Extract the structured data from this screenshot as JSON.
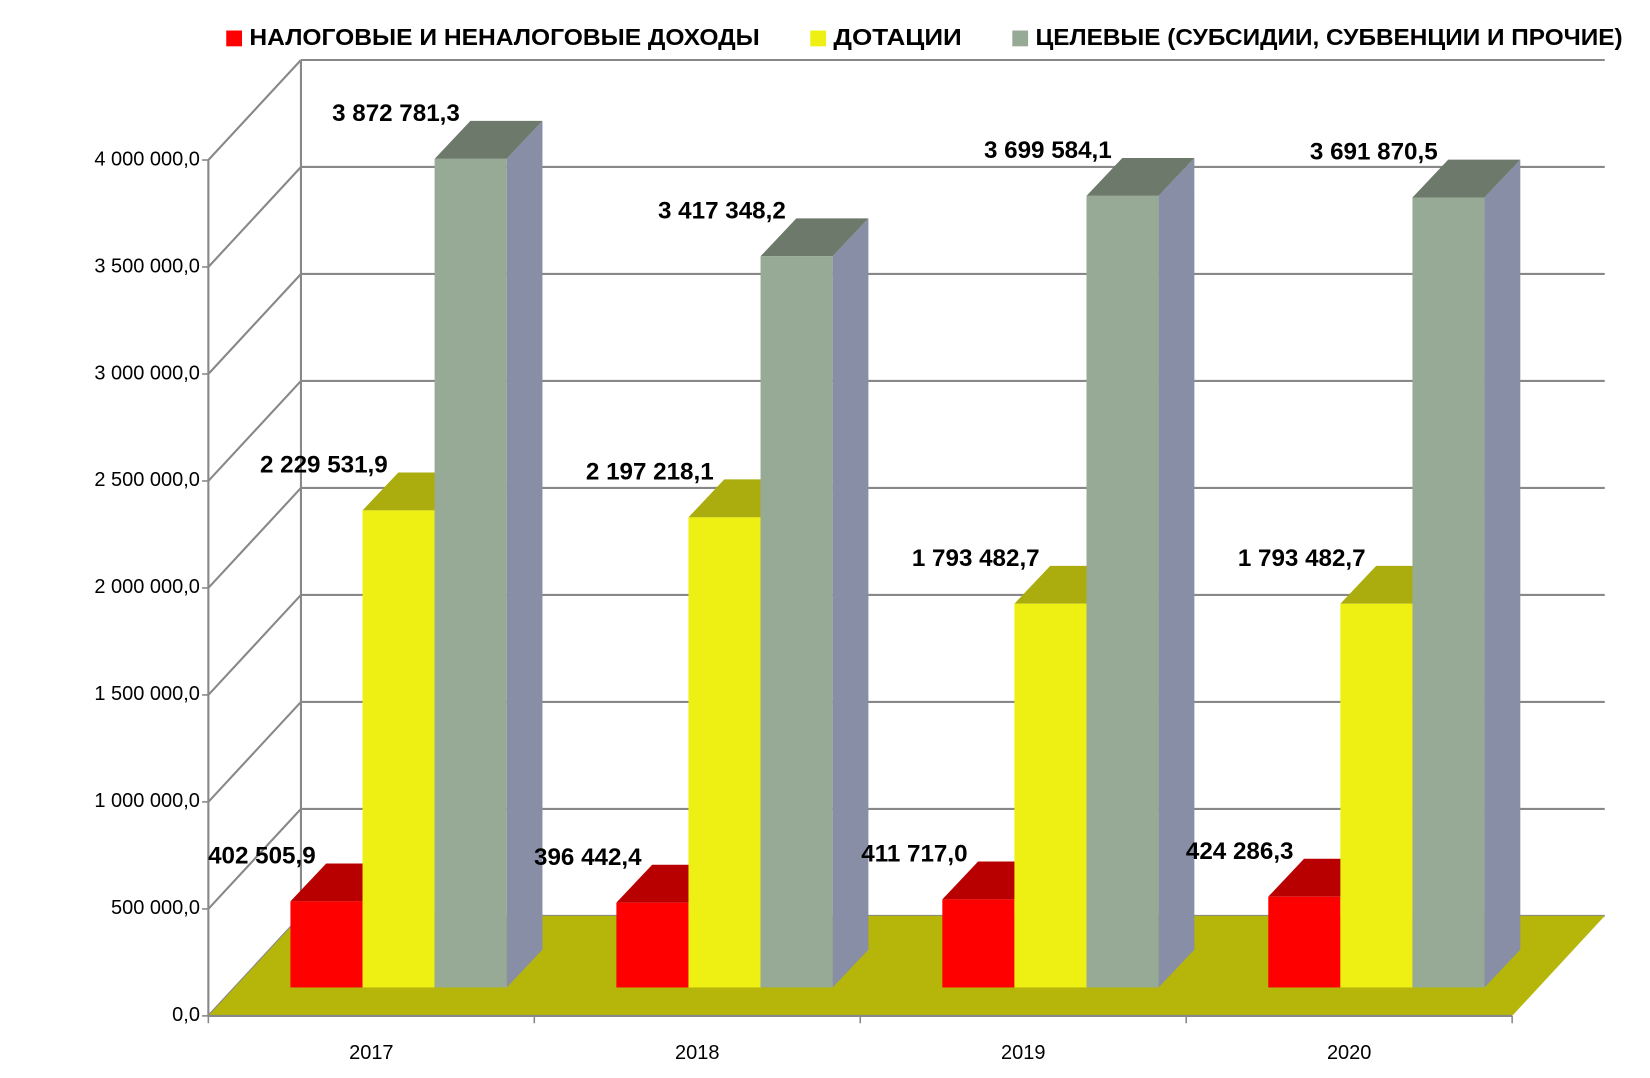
{
  "chart_data": {
    "type": "bar3d",
    "categories": [
      "2017",
      "2018",
      "2019",
      "2020"
    ],
    "series": [
      {
        "name": "НАЛОГОВЫЕ И НЕНАЛОГОВЫЕ ДОХОДЫ",
        "color": "#ff0000",
        "values": [
          402505.9,
          396442.4,
          411717.0,
          424286.3
        ],
        "value_labels": [
          "402 505,9",
          "396 442,4",
          "411 717,0",
          "424 286,3"
        ]
      },
      {
        "name": "ДОТАЦИИ",
        "color": "#eef014",
        "values": [
          2229531.9,
          2197218.1,
          1793482.7,
          1793482.7
        ],
        "value_labels": [
          "2 229 531,9",
          "2 197 218,1",
          "1 793 482,7",
          "1 793 482,7"
        ]
      },
      {
        "name": "ЦЕЛЕВЫЕ (СУБСИДИИ, СУБВЕНЦИИ И ПРОЧИЕ)",
        "color": "#97aa95",
        "values": [
          3872781.3,
          3417348.2,
          3699584.1,
          3691870.5
        ],
        "value_labels": [
          "3 872 781,3",
          "3 417 348,2",
          "3 699 584,1",
          "3 691 870,5"
        ]
      }
    ],
    "ylim": [
      0,
      4000000
    ],
    "yticks": [
      {
        "value": 0,
        "label": "0,0"
      },
      {
        "value": 500000,
        "label": "500 000,0"
      },
      {
        "value": 1000000,
        "label": "1 000 000,0"
      },
      {
        "value": 1500000,
        "label": "1 500 000,0"
      },
      {
        "value": 2000000,
        "label": "2 000 000,0"
      },
      {
        "value": 2500000,
        "label": "2 500 000,0"
      },
      {
        "value": 3000000,
        "label": "3 000 000,0"
      },
      {
        "value": 3500000,
        "label": "3 500 000,0"
      },
      {
        "value": 4000000,
        "label": "4 000 000,0"
      }
    ],
    "grid": true,
    "legend": "top",
    "floor_color": "#b5b50a"
  }
}
